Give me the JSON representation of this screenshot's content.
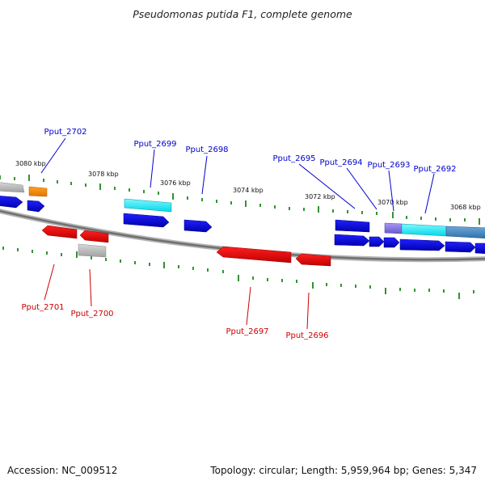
{
  "title": "Pseudomonas putida F1, complete genome",
  "accession": "Accession: NC_009512",
  "summary": "Topology: circular; Length: 5,959,964 bp; Genes: 5,347",
  "kbp_labels": [
    "3080 kbp",
    "3078 kbp",
    "3076 kbp",
    "3074 kbp",
    "3072 kbp",
    "3070 kbp",
    "3068 kbp"
  ],
  "top_genes": [
    "Pput_2702",
    "Pput_2699",
    "Pput_2698",
    "Pput_2695",
    "Pput_2694",
    "Pput_2693",
    "Pput_2692"
  ],
  "bottom_genes": [
    "Pput_2701",
    "Pput_2700",
    "Pput_2697",
    "Pput_2696"
  ],
  "colors": {
    "forward": "#0000dd",
    "reverse": "#ee0000",
    "highlight": "#00e5f0",
    "orange": "#ff8c00",
    "grey": "#b0b0b0",
    "purple": "#8870e0",
    "steel": "#4a8ac0",
    "tick": "#007700",
    "backbone": "#888888"
  }
}
